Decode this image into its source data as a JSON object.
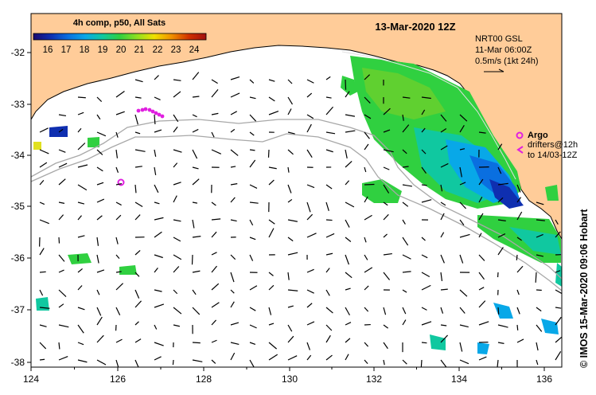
{
  "header": {
    "composite_label": "4h comp, p50, All Sats",
    "date_label": "13-Mar-2020 12Z"
  },
  "colorbar": {
    "ticks": [
      "16",
      "17",
      "18",
      "19",
      "20",
      "21",
      "22",
      "23",
      "24"
    ],
    "colors": [
      "#1a0a6e",
      "#0f2fb0",
      "#0a6fe0",
      "#08a8e8",
      "#10c8a0",
      "#30d040",
      "#90e020",
      "#f0e000",
      "#f09000",
      "#d03000",
      "#a01010"
    ]
  },
  "info": {
    "line1": "NRT00 GSL",
    "line2": "11-Mar 06:00Z",
    "line3": "0.5m/s (1kt 24h)"
  },
  "legend": {
    "argo_label": "Argo",
    "drifters_line1": "drifters@12h",
    "drifters_line2": "to 14/03-12Z",
    "argo_color": "#e020e0"
  },
  "axes": {
    "x_ticks": [
      "124",
      "126",
      "128",
      "130",
      "132",
      "134",
      "136"
    ],
    "y_ticks": [
      "-32",
      "-33",
      "-34",
      "-35",
      "-36",
      "-37",
      "-38"
    ]
  },
  "credit": "© IMOS 15-Mar-2020 09:06 Hobart",
  "colors": {
    "land": "#ffcc99",
    "ocean": "#ffffff",
    "isobath": "#a8a8a8"
  }
}
